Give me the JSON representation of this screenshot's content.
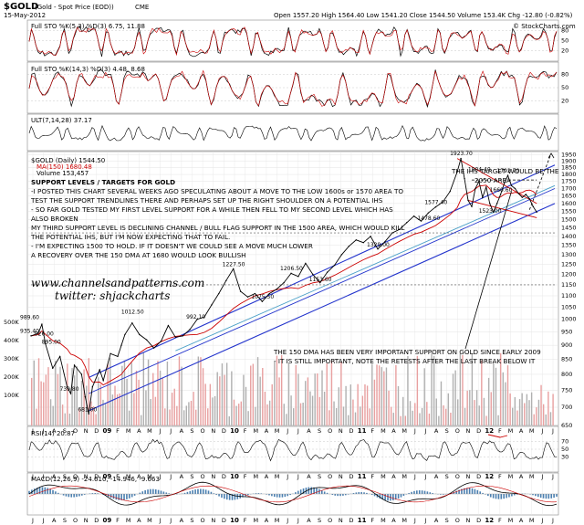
{
  "header": {
    "symbol": "$GOLD",
    "name": "(Gold - Spot Price (EOD))",
    "exchange": "CME",
    "date": "15-May-2012",
    "ohlc": "Open 1557.20   High 1564.40   Low 1541.20   Close 1544.50   Volume 153.4K   Chg -12.80 (-0.82%)",
    "copyright": "© StockCharts.com"
  },
  "panels": {
    "sto1": "Full STO %K(5,3) %D(3) 6.75, 11.88",
    "sto2": "Full STO %K(14,3) %D(3) 4.48, 8.68",
    "ult": "ULT(7,14,28) 37.17",
    "main_title": "$GOLD (Daily) 1544.50",
    "ma150": "MA(150) 1680.48",
    "volume": "Volume 153,457",
    "rsi": "RSI(14) 20.87",
    "macd": "MACD(12,26,9) -24.610, -14.946, -9.663"
  },
  "annotations": {
    "lines": [
      "SUPPORT LEVELS / TARGETS FOR GOLD",
      "-I POSTED THIS CHART SEVERAL WEEKS AGO SPECULATING ABOUT A MOVE TO THE LOW 1600s or 1570 AREA TO",
      "TEST THE SUPPORT TRENDLINES THERE AND PERHAPS SET UP THE RIGHT SHOULDER ON A POTENTIAL IHS",
      "- SO FAR GOLD TESTED MY FIRST LEVEL SUPPORT FOR A WHILE THEN FELL TO MY SECOND LEVEL WHICH HAS",
      "ALSO BROKEN",
      "MY THIRD SUPPORT LEVEL IS DECLINING CHANNEL / BULL FLAG SUPPORT IN THE 1500 AREA, WHICH WOULD KILL",
      "THE POTENTIAL IHS, BUT I'M NOW EXPECTING THAT TO FAIL.",
      "- I'M EXPECTING 1500 TO HOLD. IF IT DOESN'T WE COULD SEE A MOVE MUCH LOWER",
      "A RECOVERY OVER THE 150 DMA AT 1680 WOULD LOOK BULLISH"
    ],
    "target1": "THE IHS TARGET WOULD BE THE",
    "target2": "2050 AREA",
    "dma1": "THE 150 DMA HAS BEEN VERY IMPORTANT SUPPORT ON GOLD SINCE EARLY 2009",
    "dma2": "- IT IS STILL IMPORTANT, NOTE THE RETESTS AFTER THE LAST BREAK BELOW IT",
    "watermark1": "www.channelsandpatterns.com",
    "watermark2": "twitter: shjackcharts"
  },
  "chart_data": {
    "type": "line",
    "title": "$GOLD (Daily) 1544.50",
    "ylabel": "",
    "y_ticks": [
      650,
      700,
      750,
      800,
      850,
      900,
      950,
      1000,
      1050,
      1100,
      1150,
      1200,
      1250,
      1300,
      1350,
      1400,
      1450,
      1500,
      1550,
      1600,
      1650,
      1700,
      1750,
      1800,
      1850,
      1900,
      1950
    ],
    "ylim": [
      650,
      1975
    ],
    "scale": "log",
    "volume_ticks": [
      "500K",
      "400K",
      "300K",
      "200K",
      "100K"
    ],
    "osc_ticks": [
      80,
      50,
      20
    ],
    "rsi_ticks": [
      70,
      50,
      30
    ],
    "x_ticks": [
      "J",
      "J",
      "A",
      "S",
      "O",
      "N",
      "D",
      "09",
      "F",
      "M",
      "A",
      "M",
      "J",
      "J",
      "A",
      "S",
      "O",
      "N",
      "D",
      "10",
      "F",
      "M",
      "A",
      "M",
      "J",
      "J",
      "A",
      "S",
      "O",
      "N",
      "D",
      "11",
      "F",
      "M",
      "A",
      "M",
      "J",
      "J",
      "A",
      "S",
      "O",
      "N",
      "D",
      "12",
      "F",
      "M",
      "A",
      "M",
      "J",
      "J"
    ],
    "series": [
      {
        "name": "$GOLD",
        "values": [
          {
            "t": 0,
            "v": 935
          },
          {
            "t": 2,
            "v": 945
          },
          {
            "t": 3,
            "v": 980
          },
          {
            "t": 4,
            "v": 905
          },
          {
            "t": 6,
            "v": 820
          },
          {
            "t": 8,
            "v": 860
          },
          {
            "t": 10,
            "v": 760
          },
          {
            "t": 11,
            "v": 740
          },
          {
            "t": 12,
            "v": 830
          },
          {
            "t": 14,
            "v": 800
          },
          {
            "t": 15,
            "v": 730
          },
          {
            "t": 16,
            "v": 681
          },
          {
            "t": 17,
            "v": 760
          },
          {
            "t": 19,
            "v": 815
          },
          {
            "t": 20,
            "v": 780
          },
          {
            "t": 22,
            "v": 870
          },
          {
            "t": 24,
            "v": 860
          },
          {
            "t": 25,
            "v": 900
          },
          {
            "t": 26,
            "v": 940
          },
          {
            "t": 28,
            "v": 985
          },
          {
            "t": 30,
            "v": 940
          },
          {
            "t": 32,
            "v": 920
          },
          {
            "t": 34,
            "v": 890
          },
          {
            "t": 36,
            "v": 915
          },
          {
            "t": 38,
            "v": 975
          },
          {
            "t": 40,
            "v": 930
          },
          {
            "t": 42,
            "v": 935
          },
          {
            "t": 44,
            "v": 960
          },
          {
            "t": 46,
            "v": 1000
          },
          {
            "t": 48,
            "v": 1010
          },
          {
            "t": 50,
            "v": 1060
          },
          {
            "t": 52,
            "v": 1110
          },
          {
            "t": 54,
            "v": 1170
          },
          {
            "t": 56,
            "v": 1227
          },
          {
            "t": 58,
            "v": 1120
          },
          {
            "t": 60,
            "v": 1095
          },
          {
            "t": 62,
            "v": 1110
          },
          {
            "t": 64,
            "v": 1075
          },
          {
            "t": 66,
            "v": 1110
          },
          {
            "t": 68,
            "v": 1130
          },
          {
            "t": 70,
            "v": 1160
          },
          {
            "t": 72,
            "v": 1205
          },
          {
            "t": 74,
            "v": 1190
          },
          {
            "t": 76,
            "v": 1255
          },
          {
            "t": 78,
            "v": 1200
          },
          {
            "t": 80,
            "v": 1160
          },
          {
            "t": 82,
            "v": 1210
          },
          {
            "t": 84,
            "v": 1245
          },
          {
            "t": 86,
            "v": 1300
          },
          {
            "t": 88,
            "v": 1345
          },
          {
            "t": 90,
            "v": 1380
          },
          {
            "t": 92,
            "v": 1365
          },
          {
            "t": 94,
            "v": 1400
          },
          {
            "t": 96,
            "v": 1330
          },
          {
            "t": 98,
            "v": 1370
          },
          {
            "t": 100,
            "v": 1420
          },
          {
            "t": 102,
            "v": 1440
          },
          {
            "t": 104,
            "v": 1480
          },
          {
            "t": 106,
            "v": 1520
          },
          {
            "t": 108,
            "v": 1490
          },
          {
            "t": 110,
            "v": 1540
          },
          {
            "t": 112,
            "v": 1577
          },
          {
            "t": 114,
            "v": 1610
          },
          {
            "t": 116,
            "v": 1680
          },
          {
            "t": 118,
            "v": 1820
          },
          {
            "t": 119,
            "v": 1920
          },
          {
            "t": 120,
            "v": 1770
          },
          {
            "t": 121,
            "v": 1620
          },
          {
            "t": 122,
            "v": 1580
          },
          {
            "t": 123,
            "v": 1700
          },
          {
            "t": 124,
            "v": 1750
          },
          {
            "t": 125,
            "v": 1640
          },
          {
            "t": 126,
            "v": 1710
          },
          {
            "t": 127,
            "v": 1600
          },
          {
            "t": 128,
            "v": 1545
          },
          {
            "t": 129,
            "v": 1600
          },
          {
            "t": 130,
            "v": 1660
          },
          {
            "t": 131,
            "v": 1735
          },
          {
            "t": 132,
            "v": 1792
          },
          {
            "t": 133,
            "v": 1720
          },
          {
            "t": 134,
            "v": 1700
          },
          {
            "t": 135,
            "v": 1665
          },
          {
            "t": 136,
            "v": 1640
          },
          {
            "t": 137,
            "v": 1660
          },
          {
            "t": 138,
            "v": 1630
          },
          {
            "t": 139,
            "v": 1580
          },
          {
            "t": 140,
            "v": 1544.5
          }
        ]
      }
    ],
    "price_labels": [
      "1577.40",
      "1923.70",
      "1804.40",
      "1792.70",
      "1660.60",
      "1227.50",
      "1206.50",
      "1075.50",
      "1153.60",
      "1329.00",
      "1012.50",
      "992.10",
      "926.00",
      "989.60",
      "935.40",
      "895.00",
      "739.80",
      "681.00",
      "1478.60",
      "1523.00"
    ],
    "legend_placement": "top-left",
    "grid": true
  }
}
